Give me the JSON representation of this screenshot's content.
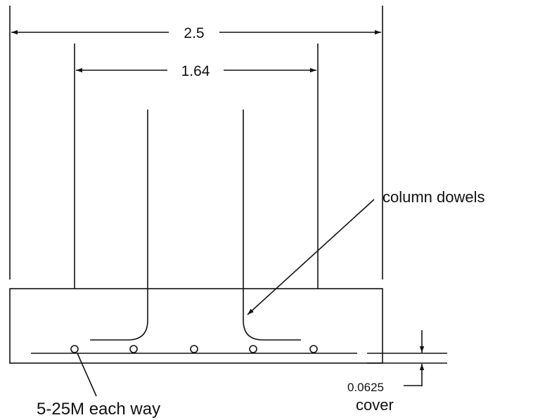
{
  "dimensions": {
    "overall_width": "2.5",
    "column_width": "1.64",
    "cover": "0.0625"
  },
  "labels": {
    "column_dowels": "column dowels",
    "bottom_bars": "5-25M each way",
    "cover_word": "cover"
  },
  "colors": {
    "line": "#111111",
    "background": "#ffffff"
  }
}
